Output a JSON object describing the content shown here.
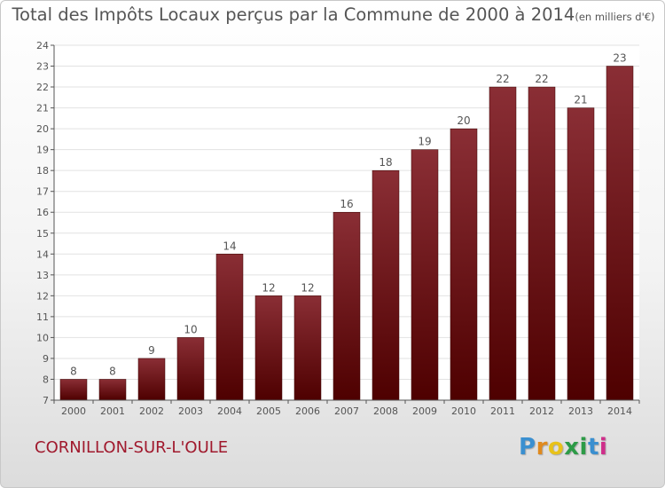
{
  "header": {
    "title": "Total des Impôts Locaux perçus par la Commune de 2000 à 2014",
    "unit": "(en milliers d'€)"
  },
  "footer": {
    "commune": "CORNILLON-SUR-L'OULE",
    "logo_letters": [
      "P",
      "r",
      "o",
      "x",
      "i",
      "t",
      "i"
    ],
    "logo_colors": [
      "#3a8fd0",
      "#e08a1e",
      "#e8c21a",
      "#2d9b47",
      "#2d9b47",
      "#3a8fd0",
      "#cf2e8a"
    ]
  },
  "colors": {
    "bar_dark": "#4e0000",
    "bar_light": "#8a2e35",
    "axis": "#555555",
    "grid": "#e2e2e2"
  },
  "chart_data": {
    "type": "bar",
    "title": "Total des Impôts Locaux perçus par la Commune de 2000 à 2014",
    "subtitle": "(en milliers d'€)",
    "xlabel": "",
    "ylabel": "",
    "categories": [
      "2000",
      "2001",
      "2002",
      "2003",
      "2004",
      "2005",
      "2006",
      "2007",
      "2008",
      "2009",
      "2010",
      "2011",
      "2012",
      "2013",
      "2014"
    ],
    "values": [
      8,
      8,
      9,
      10,
      14,
      12,
      12,
      16,
      18,
      19,
      20,
      22,
      22,
      21,
      23
    ],
    "ylim": [
      7,
      24
    ],
    "yticks": [
      7,
      8,
      9,
      10,
      11,
      12,
      13,
      14,
      15,
      16,
      17,
      18,
      19,
      20,
      21,
      22,
      23,
      24
    ],
    "grid": true
  }
}
